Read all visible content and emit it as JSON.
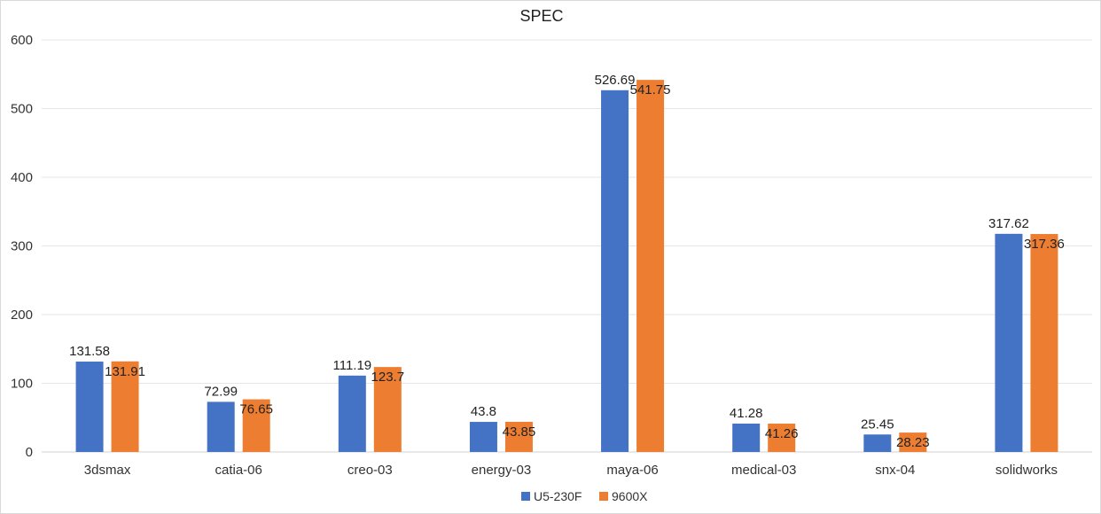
{
  "chart_data": {
    "type": "bar",
    "title": "SPEC",
    "xlabel": "",
    "ylabel": "",
    "ylim": [
      0,
      600
    ],
    "yticks": [
      0,
      100,
      200,
      300,
      400,
      500,
      600
    ],
    "grid": true,
    "legend": "bottom-center",
    "categories": [
      "3dsmax",
      "catia-06",
      "creo-03",
      "energy-03",
      "maya-06",
      "medical-03",
      "snx-04",
      "solidworks"
    ],
    "series": [
      {
        "name": "U5-230F",
        "color": "#4472C4",
        "values": [
          131.58,
          72.99,
          111.19,
          43.8,
          526.69,
          41.28,
          25.45,
          317.62
        ],
        "labels": [
          "131.58",
          "72.99",
          "111.19",
          "43.8",
          "526.69",
          "41.28",
          "25.45",
          "317.62"
        ]
      },
      {
        "name": "9600X",
        "color": "#ED7D31",
        "values": [
          131.91,
          76.65,
          123.7,
          43.85,
          541.75,
          41.26,
          28.23,
          317.36
        ],
        "labels": [
          "131.91",
          "76.65",
          "123.7",
          "43.85",
          "541.75",
          "41.26",
          "28.23",
          "317.36"
        ]
      }
    ]
  }
}
